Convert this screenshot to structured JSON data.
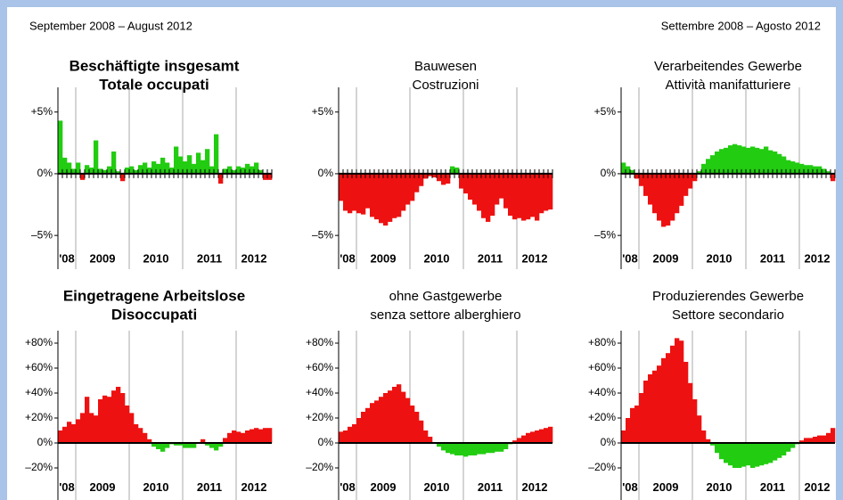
{
  "header": {
    "left": "September 2008 – August 2012",
    "right": "Settembre 2008 – Agosto 2012"
  },
  "chart_data": [
    {
      "type": "bar",
      "title": [
        "Beschäftigte insgesamt",
        "Totale occupati"
      ],
      "title_bold": true,
      "x_labels": [
        "'08",
        "2009",
        "2010",
        "2011",
        "2012"
      ],
      "values": [
        4.3,
        1.3,
        0.9,
        0.4,
        0.9,
        -0.5,
        0.7,
        0.5,
        2.7,
        0.4,
        0.3,
        0.6,
        1.8,
        0.2,
        -0.6,
        0.5,
        0.6,
        0.3,
        0.7,
        0.9,
        0.5,
        1.0,
        0.8,
        1.3,
        0.9,
        0.5,
        2.2,
        1.4,
        1.0,
        1.5,
        0.8,
        1.7,
        1.1,
        2.0,
        0.6,
        3.2,
        -0.8,
        0.4,
        0.6,
        0.3,
        0.6,
        0.5,
        0.8,
        0.6,
        0.9,
        0.3,
        -0.5,
        -0.5
      ],
      "ylim": [
        -6,
        7
      ],
      "yticks": [
        {
          "value": 5,
          "label": "+5%"
        },
        {
          "value": 0,
          "label": "0%"
        },
        {
          "value": -5,
          "label": "–5%"
        }
      ],
      "pos_color": "#22cc11",
      "neg_color": "#ee1111",
      "zero_ticks": true
    },
    {
      "type": "bar",
      "title": [
        "Bauwesen",
        "Costruzioni"
      ],
      "title_bold": false,
      "x_labels": [
        "'08",
        "2009",
        "2010",
        "2011",
        "2012"
      ],
      "values": [
        -2.2,
        -3.0,
        -3.2,
        -3.0,
        -3.2,
        -3.3,
        -2.8,
        -3.5,
        -3.7,
        -4.0,
        -4.2,
        -3.9,
        -3.6,
        -3.5,
        -3.0,
        -2.5,
        -2.2,
        -1.5,
        -1.0,
        -0.4,
        -0.2,
        -0.3,
        -0.6,
        -0.9,
        -0.8,
        0.6,
        0.5,
        -1.2,
        -1.6,
        -2.1,
        -2.5,
        -3.0,
        -3.6,
        -3.9,
        -3.4,
        -2.5,
        -2.0,
        -2.8,
        -3.4,
        -3.7,
        -3.6,
        -3.8,
        -3.7,
        -3.5,
        -3.8,
        -3.2,
        -3.0,
        -2.9
      ],
      "ylim": [
        -6,
        7
      ],
      "yticks": [
        {
          "value": 5,
          "label": "+5%"
        },
        {
          "value": 0,
          "label": "0%"
        },
        {
          "value": -5,
          "label": "–5%"
        }
      ],
      "pos_color": "#22cc11",
      "neg_color": "#ee1111",
      "zero_ticks": true
    },
    {
      "type": "bar",
      "title": [
        "Verarbeitendes Gewerbe",
        "Attività manifatturiere"
      ],
      "title_bold": false,
      "x_labels": [
        "'08",
        "2009",
        "2010",
        "2011",
        "2012"
      ],
      "values": [
        0.9,
        0.6,
        0.3,
        -0.4,
        -1.0,
        -1.8,
        -2.5,
        -3.2,
        -3.8,
        -4.3,
        -4.2,
        -3.8,
        -3.2,
        -2.6,
        -1.8,
        -1.2,
        -0.6,
        0.2,
        0.8,
        1.2,
        1.5,
        1.8,
        2.0,
        2.1,
        2.3,
        2.4,
        2.3,
        2.2,
        2.1,
        2.2,
        2.1,
        2.0,
        2.2,
        1.9,
        1.8,
        1.6,
        1.4,
        1.1,
        1.0,
        0.9,
        0.8,
        0.7,
        0.7,
        0.6,
        0.6,
        0.4,
        0.2,
        -0.6
      ],
      "ylim": [
        -6,
        7
      ],
      "yticks": [
        {
          "value": 5,
          "label": "+5%"
        },
        {
          "value": 0,
          "label": "0%"
        },
        {
          "value": -5,
          "label": "–5%"
        }
      ],
      "pos_color": "#22cc11",
      "neg_color": "#ee1111",
      "zero_ticks": true
    },
    {
      "type": "bar",
      "title": [
        "Eingetragene Arbeitslose",
        "Disoccupati"
      ],
      "title_bold": true,
      "x_labels": [
        "'08",
        "2009",
        "2010",
        "2011",
        "2012"
      ],
      "values": [
        10,
        13,
        17,
        15,
        19,
        24,
        37,
        24,
        22,
        35,
        38,
        37,
        42,
        45,
        40,
        30,
        24,
        15,
        12,
        8,
        3,
        -3,
        -5,
        -7,
        -4,
        -1,
        -2,
        -2,
        -4,
        -4,
        -4,
        0,
        3,
        -2,
        -4,
        -6,
        -3,
        4,
        8,
        10,
        9,
        8,
        10,
        11,
        12,
        11,
        12,
        12
      ],
      "ylim": [
        -25,
        90
      ],
      "yticks": [
        {
          "value": 80,
          "label": "+80%"
        },
        {
          "value": 60,
          "label": "+60%"
        },
        {
          "value": 40,
          "label": "+40%"
        },
        {
          "value": 20,
          "label": "+20%"
        },
        {
          "value": 0,
          "label": "0%"
        },
        {
          "value": -20,
          "label": "–20%"
        }
      ],
      "pos_color": "#ee1111",
      "neg_color": "#22cc11",
      "zero_ticks": false
    },
    {
      "type": "bar",
      "title": [
        "ohne Gastgewerbe",
        "senza settore alberghiero"
      ],
      "title_bold": false,
      "x_labels": [
        "'08",
        "2009",
        "2010",
        "2011",
        "2012"
      ],
      "values": [
        9,
        10,
        13,
        15,
        20,
        25,
        28,
        32,
        34,
        37,
        40,
        42,
        45,
        47,
        41,
        36,
        30,
        25,
        18,
        10,
        5,
        0,
        -3,
        -6,
        -8,
        -9,
        -10,
        -10,
        -11,
        -10,
        -10,
        -9,
        -9,
        -8,
        -8,
        -7,
        -7,
        -5,
        -1,
        2,
        4,
        6,
        8,
        9,
        10,
        11,
        12,
        13
      ],
      "ylim": [
        -25,
        90
      ],
      "yticks": [
        {
          "value": 80,
          "label": "+80%"
        },
        {
          "value": 60,
          "label": "+60%"
        },
        {
          "value": 40,
          "label": "+40%"
        },
        {
          "value": 20,
          "label": "+20%"
        },
        {
          "value": 0,
          "label": "0%"
        },
        {
          "value": -20,
          "label": "–20%"
        }
      ],
      "pos_color": "#ee1111",
      "neg_color": "#22cc11",
      "zero_ticks": false
    },
    {
      "type": "bar",
      "title": [
        "Produzierendes Gewerbe",
        "Settore secondario"
      ],
      "title_bold": false,
      "x_labels": [
        "'08",
        "2009",
        "2010",
        "2011",
        "2012"
      ],
      "values": [
        10,
        20,
        28,
        30,
        40,
        50,
        55,
        58,
        62,
        68,
        72,
        78,
        84,
        82,
        65,
        48,
        35,
        22,
        10,
        3,
        -2,
        -8,
        -13,
        -16,
        -18,
        -20,
        -20,
        -19,
        -18,
        -20,
        -19,
        -18,
        -17,
        -16,
        -14,
        -12,
        -10,
        -7,
        -4,
        -1,
        2,
        4,
        4,
        5,
        6,
        6,
        8,
        12
      ],
      "ylim": [
        -25,
        90
      ],
      "yticks": [
        {
          "value": 80,
          "label": "+80%"
        },
        {
          "value": 60,
          "label": "+60%"
        },
        {
          "value": 40,
          "label": "+40%"
        },
        {
          "value": 20,
          "label": "+20%"
        },
        {
          "value": 0,
          "label": "0%"
        },
        {
          "value": -20,
          "label": "–20%"
        }
      ],
      "pos_color": "#ee1111",
      "neg_color": "#22cc11",
      "zero_ticks": false
    }
  ]
}
